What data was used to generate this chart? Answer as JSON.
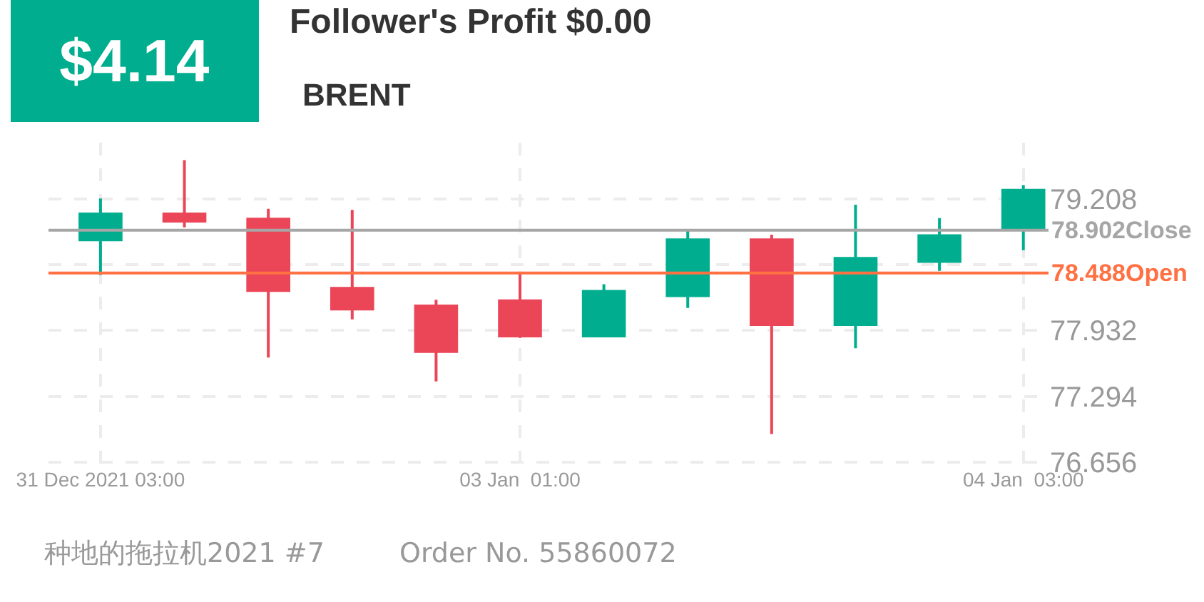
{
  "chart_data": {
    "type": "candlestick",
    "title": "Follower's Profit $0.00",
    "subtitle": "BRENT",
    "annotations": [
      "$4.14",
      "种地的拖拉机2021 #7",
      "Order No. 55860072"
    ],
    "categories": [
      "31 Dec 2021 03:00",
      null,
      null,
      null,
      null,
      "03 Jan  01:00",
      null,
      null,
      null,
      null,
      null,
      "04 Jan  03:00"
    ],
    "ohlc": [
      [
        78.81,
        79.21,
        78.47,
        79.06
      ],
      [
        79.06,
        79.58,
        78.93,
        78.99
      ],
      [
        79.01,
        79.11,
        77.67,
        78.32
      ],
      [
        78.34,
        79.1,
        78.04,
        78.14
      ],
      [
        78.17,
        78.23,
        77.44,
        77.73
      ],
      [
        78.22,
        78.5,
        77.86,
        77.88
      ],
      [
        77.88,
        78.38,
        77.88,
        78.31
      ],
      [
        78.27,
        78.9,
        78.15,
        78.81
      ],
      [
        78.81,
        78.86,
        76.93,
        77.99
      ],
      [
        77.99,
        79.15,
        77.76,
        78.63
      ],
      [
        78.6,
        79.02,
        78.51,
        78.85
      ],
      [
        78.92,
        79.34,
        78.71,
        79.29
      ]
    ],
    "colors": [
      "#00ae8f",
      "#ea4657",
      "#ea4657",
      "#ea4657",
      "#ea4657",
      "#ea4657",
      "#00ae8f",
      "#00ae8f",
      "#ea4657",
      "#00ae8f",
      "#00ae8f",
      "#00ae8f"
    ],
    "ylim": [
      76.63,
      79.75
    ],
    "yticks": [
      76.656,
      77.294,
      77.932,
      {
        "value": 78.57,
        "label": null
      },
      79.208
    ],
    "grid": true,
    "ref_lines": [
      {
        "axis": "y",
        "value": 78.902,
        "label": "78.902Close",
        "color": "#a6a6a6"
      },
      {
        "axis": "y",
        "value": 78.488,
        "label": "78.488Open",
        "color": "#ff7043"
      }
    ]
  }
}
